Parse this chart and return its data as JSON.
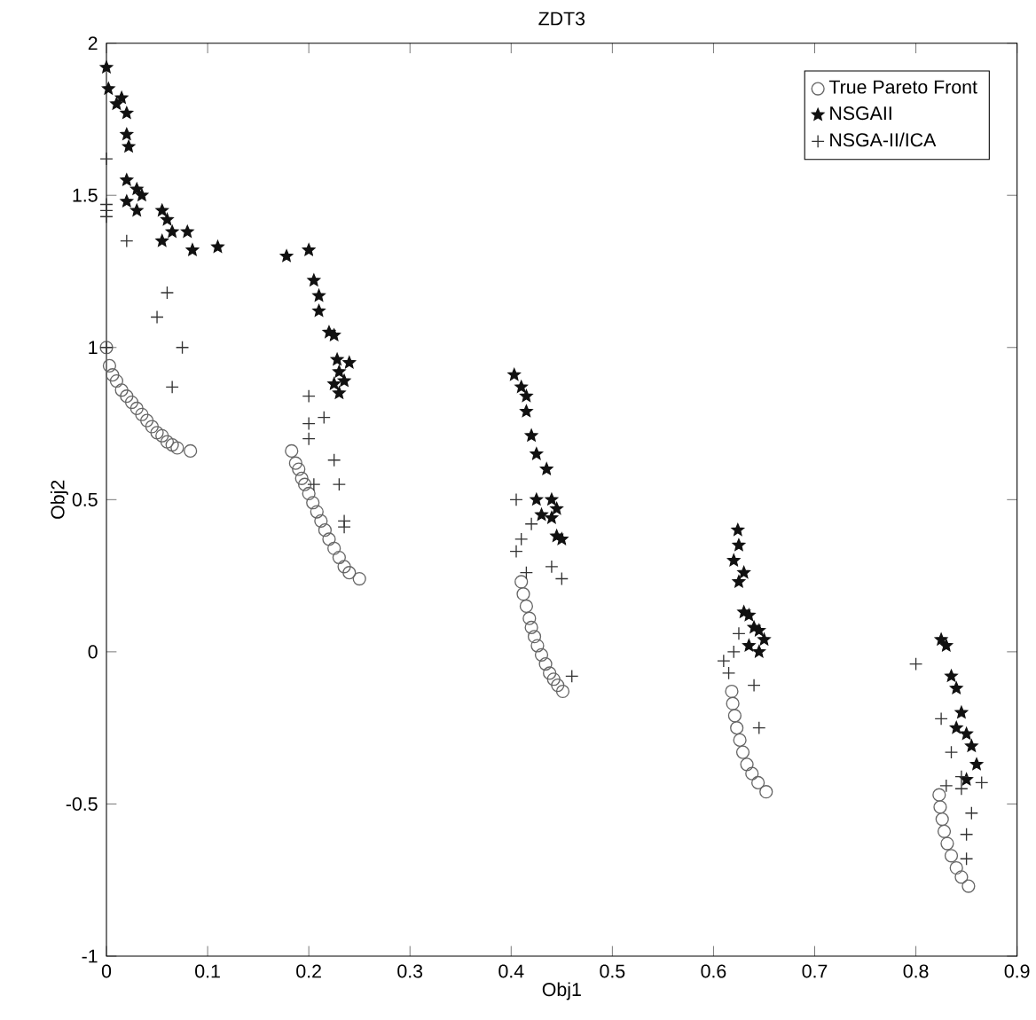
{
  "chart_data": {
    "type": "scatter",
    "title": "ZDT3",
    "xlabel": "Obj1",
    "ylabel": "Obj2",
    "xlim": [
      0,
      0.9
    ],
    "ylim": [
      -1,
      2
    ],
    "xticks": [
      0,
      0.1,
      0.2,
      0.3,
      0.4,
      0.5,
      0.6,
      0.7,
      0.8,
      0.9
    ],
    "yticks": [
      -1,
      -0.5,
      0,
      0.5,
      1,
      1.5,
      2
    ],
    "grid": false,
    "legend": "top right",
    "series": [
      {
        "name": "True Pareto Front",
        "color": "#666666",
        "marker": "circle",
        "x": [
          0,
          0.003,
          0.006,
          0.01,
          0.015,
          0.02,
          0.025,
          0.03,
          0.035,
          0.04,
          0.045,
          0.05,
          0.055,
          0.06,
          0.065,
          0.07,
          0.083,
          0.183,
          0.187,
          0.19,
          0.193,
          0.196,
          0.2,
          0.204,
          0.208,
          0.212,
          0.216,
          0.22,
          0.225,
          0.23,
          0.235,
          0.24,
          0.25,
          0.41,
          0.412,
          0.415,
          0.418,
          0.42,
          0.423,
          0.426,
          0.43,
          0.434,
          0.438,
          0.442,
          0.446,
          0.451,
          0.618,
          0.619,
          0.621,
          0.623,
          0.626,
          0.629,
          0.633,
          0.638,
          0.644,
          0.652,
          0.823,
          0.824,
          0.826,
          0.828,
          0.831,
          0.835,
          0.84,
          0.845,
          0.852
        ],
        "values": [
          1.0,
          0.94,
          0.91,
          0.89,
          0.86,
          0.84,
          0.82,
          0.8,
          0.78,
          0.76,
          0.74,
          0.72,
          0.71,
          0.69,
          0.68,
          0.67,
          0.66,
          0.66,
          0.62,
          0.6,
          0.57,
          0.55,
          0.52,
          0.49,
          0.46,
          0.43,
          0.4,
          0.37,
          0.34,
          0.31,
          0.28,
          0.26,
          0.24,
          0.23,
          0.19,
          0.15,
          0.11,
          0.08,
          0.05,
          0.02,
          -0.01,
          -0.04,
          -0.07,
          -0.09,
          -0.11,
          -0.13,
          -0.13,
          -0.17,
          -0.21,
          -0.25,
          -0.29,
          -0.33,
          -0.37,
          -0.4,
          -0.43,
          -0.46,
          -0.47,
          -0.51,
          -0.55,
          -0.59,
          -0.63,
          -0.67,
          -0.71,
          -0.74,
          -0.77
        ]
      },
      {
        "name": "NSGAII",
        "color": "#111111",
        "marker": "star",
        "x": [
          0.0,
          0.002,
          0.01,
          0.015,
          0.02,
          0.02,
          0.022,
          0.02,
          0.03,
          0.035,
          0.02,
          0.03,
          0.055,
          0.06,
          0.065,
          0.055,
          0.08,
          0.085,
          0.11,
          0.178,
          0.2,
          0.205,
          0.21,
          0.21,
          0.22,
          0.225,
          0.228,
          0.23,
          0.235,
          0.24,
          0.225,
          0.23,
          0.403,
          0.41,
          0.415,
          0.415,
          0.42,
          0.425,
          0.435,
          0.44,
          0.445,
          0.44,
          0.445,
          0.45,
          0.425,
          0.43,
          0.624,
          0.625,
          0.62,
          0.63,
          0.625,
          0.63,
          0.635,
          0.64,
          0.645,
          0.65,
          0.645,
          0.635,
          0.825,
          0.83,
          0.835,
          0.84,
          0.845,
          0.85,
          0.855,
          0.86,
          0.85,
          0.84
        ],
        "values": [
          1.92,
          1.85,
          1.8,
          1.82,
          1.77,
          1.7,
          1.66,
          1.55,
          1.52,
          1.5,
          1.48,
          1.45,
          1.45,
          1.42,
          1.38,
          1.35,
          1.38,
          1.32,
          1.33,
          1.3,
          1.32,
          1.22,
          1.17,
          1.12,
          1.05,
          1.04,
          0.96,
          0.92,
          0.89,
          0.95,
          0.88,
          0.85,
          0.91,
          0.87,
          0.84,
          0.79,
          0.71,
          0.65,
          0.6,
          0.5,
          0.47,
          0.44,
          0.38,
          0.37,
          0.5,
          0.45,
          0.4,
          0.35,
          0.3,
          0.26,
          0.23,
          0.13,
          0.12,
          0.08,
          0.07,
          0.04,
          0.0,
          0.02,
          0.04,
          0.02,
          -0.08,
          -0.12,
          -0.2,
          -0.27,
          -0.31,
          -0.37,
          -0.42,
          -0.25
        ]
      },
      {
        "name": "NSGA-II/ICA",
        "color": "#333333",
        "marker": "cross",
        "x": [
          0.0,
          0.0,
          0.0,
          0.0,
          0.02,
          0.05,
          0.06,
          0.065,
          0.075,
          0.0,
          0.2,
          0.2,
          0.2,
          0.215,
          0.225,
          0.23,
          0.235,
          0.235,
          0.205,
          0.405,
          0.41,
          0.405,
          0.42,
          0.415,
          0.44,
          0.45,
          0.46,
          0.61,
          0.615,
          0.62,
          0.625,
          0.64,
          0.645,
          0.8,
          0.825,
          0.83,
          0.835,
          0.845,
          0.845,
          0.855,
          0.85,
          0.85,
          0.865
        ],
        "values": [
          1.62,
          1.47,
          1.45,
          1.43,
          1.35,
          1.1,
          1.18,
          0.87,
          1.0,
          1.0,
          0.75,
          0.84,
          0.7,
          0.77,
          0.63,
          0.55,
          0.43,
          0.41,
          0.55,
          0.5,
          0.37,
          0.33,
          0.42,
          0.26,
          0.28,
          0.24,
          -0.08,
          -0.03,
          -0.07,
          0.0,
          0.06,
          -0.11,
          -0.25,
          -0.04,
          -0.22,
          -0.44,
          -0.33,
          -0.41,
          -0.45,
          -0.53,
          -0.6,
          -0.68,
          -0.43
        ]
      }
    ]
  }
}
